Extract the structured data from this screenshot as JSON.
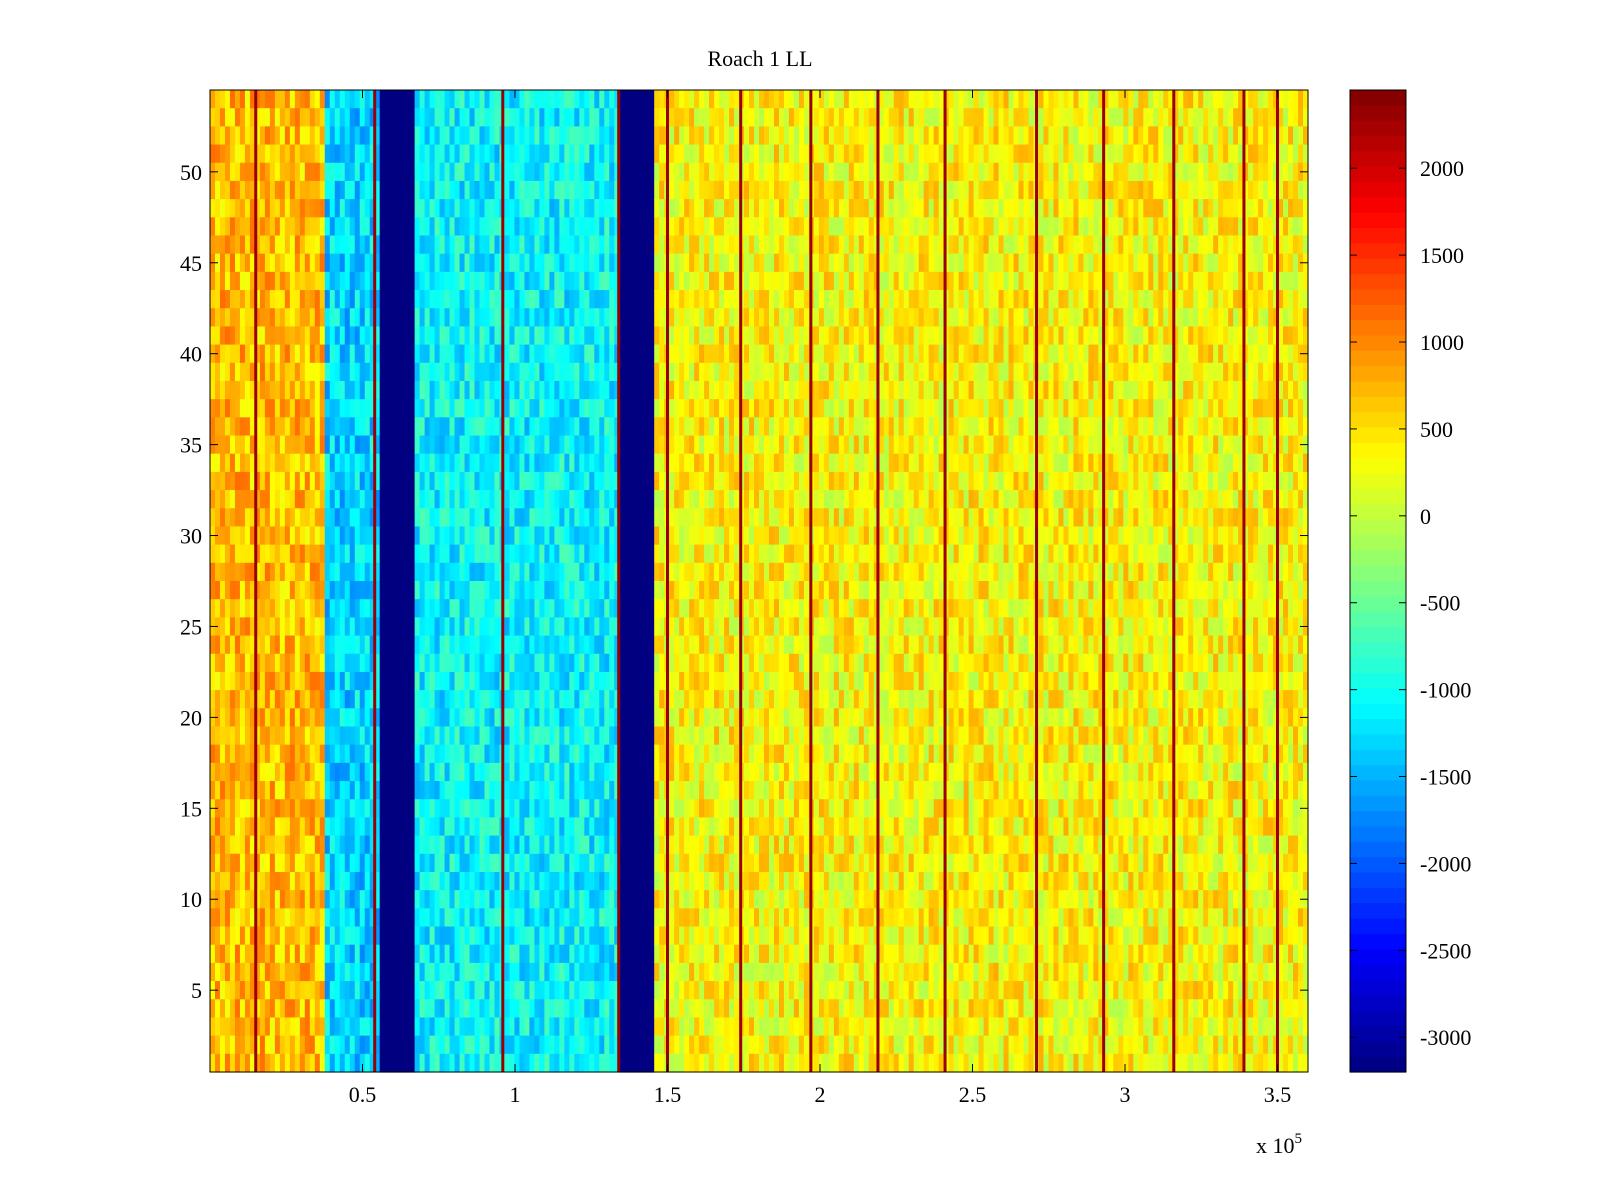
{
  "chart_data": {
    "type": "heatmap",
    "title": "Roach 1 LL",
    "xlabel": "",
    "ylabel": "",
    "x_exponent_label": "x 10",
    "x_exponent_power": "5",
    "xlim": [
      0,
      360000
    ],
    "ylim": [
      0.5,
      54.5
    ],
    "x_ticks": [
      {
        "value": 50000,
        "label": "0.5"
      },
      {
        "value": 100000,
        "label": "1"
      },
      {
        "value": 150000,
        "label": "1.5"
      },
      {
        "value": 200000,
        "label": "2"
      },
      {
        "value": 250000,
        "label": "2.5"
      },
      {
        "value": 300000,
        "label": "3"
      },
      {
        "value": 350000,
        "label": "3.5"
      }
    ],
    "y_ticks": [
      {
        "value": 5,
        "label": "5"
      },
      {
        "value": 10,
        "label": "10"
      },
      {
        "value": 15,
        "label": "15"
      },
      {
        "value": 20,
        "label": "20"
      },
      {
        "value": 25,
        "label": "25"
      },
      {
        "value": 30,
        "label": "30"
      },
      {
        "value": 35,
        "label": "35"
      },
      {
        "value": 40,
        "label": "40"
      },
      {
        "value": 45,
        "label": "45"
      },
      {
        "value": 50,
        "label": "50"
      }
    ],
    "colorbar": {
      "colormap": "jet",
      "clim": [
        -3200,
        2450
      ],
      "ticks": [
        {
          "value": 2000,
          "label": "2000"
        },
        {
          "value": 1500,
          "label": "1500"
        },
        {
          "value": 1000,
          "label": "1000"
        },
        {
          "value": 500,
          "label": "500"
        },
        {
          "value": 0,
          "label": "0"
        },
        {
          "value": -500,
          "label": "-500"
        },
        {
          "value": -1000,
          "label": "-1000"
        },
        {
          "value": -1500,
          "label": "-1500"
        },
        {
          "value": -2000,
          "label": "-2000"
        },
        {
          "value": -2500,
          "label": "-2500"
        },
        {
          "value": -3000,
          "label": "-3000"
        }
      ]
    },
    "rows": 54,
    "bands": [
      {
        "x_start": 0,
        "x_end": 38000,
        "value": 700
      },
      {
        "x_start": 38000,
        "x_end": 55000,
        "value": -1300
      },
      {
        "x_start": 55000,
        "x_end": 67000,
        "value": -3200
      },
      {
        "x_start": 67000,
        "x_end": 134000,
        "value": -1100
      },
      {
        "x_start": 134000,
        "x_end": 146000,
        "value": -3200
      },
      {
        "x_start": 146000,
        "x_end": 360000,
        "value": 350
      }
    ],
    "spike_lines_x": [
      15000,
      54000,
      96000,
      134000,
      150000,
      174000,
      197000,
      219000,
      241000,
      271000,
      293000,
      316000,
      339000,
      350000
    ],
    "spike_value": 2300,
    "grid": false
  }
}
